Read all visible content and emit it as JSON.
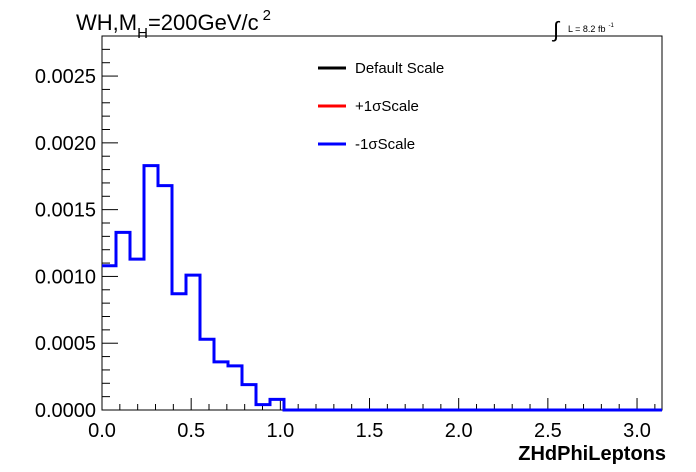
{
  "chart_data": {
    "type": "line",
    "style": "step-histogram",
    "title": {
      "main": "WH,M",
      "sub": "H",
      "rest": "=200GeV/c",
      "sup": "2"
    },
    "lumi": {
      "symbol": "∫",
      "text": "L = 8.2 fb",
      "sup": "-1"
    },
    "xlabel": "ZHdPhiLeptons",
    "xlim": [
      0,
      3.14
    ],
    "ylim": [
      0,
      0.0028
    ],
    "xticks": [
      "0.0",
      "0.5",
      "1.0",
      "1.5",
      "2.0",
      "2.5",
      "3.0"
    ],
    "yticks": [
      "0.0000",
      "0.0005",
      "0.0010",
      "0.0015",
      "0.0020",
      "0.0025"
    ],
    "legend": {
      "placement": "top-center",
      "entries": [
        {
          "label": "Default Scale",
          "color": "#000000"
        },
        {
          "label": "+1σScale",
          "color": "#ff0000"
        },
        {
          "label": "-1σScale",
          "color": "#0000ff"
        }
      ]
    },
    "bin_width": 0.0785,
    "bin_edges_start": 0,
    "series": [
      {
        "name": "-1σScale",
        "color": "#0000ff",
        "values": [
          0.00108,
          0.00133,
          0.00113,
          0.00183,
          0.00168,
          0.00087,
          0.00101,
          0.00053,
          0.00036,
          0.00033,
          0.00019,
          4e-05,
          8e-05,
          0.0,
          0.0,
          0.0,
          0.0,
          0.0,
          0.0,
          0.0,
          0.0,
          0.0,
          0.0,
          0.0,
          0.0,
          0.0,
          0.0,
          0.0,
          0.0,
          0.0,
          0.0,
          0.0,
          0.0,
          0.0,
          0.0,
          0.0,
          0.0,
          0.0,
          0.0,
          0.0
        ]
      }
    ]
  }
}
